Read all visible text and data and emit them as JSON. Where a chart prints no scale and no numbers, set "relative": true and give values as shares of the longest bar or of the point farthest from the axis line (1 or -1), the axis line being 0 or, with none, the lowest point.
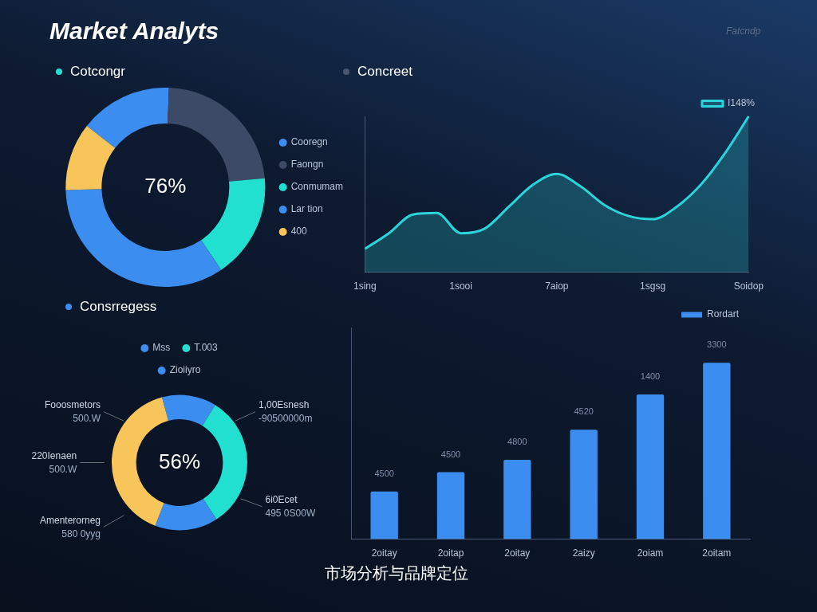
{
  "chart_data": [
    {
      "type": "other",
      "title": "Market Analyts",
      "annotations": [
        "Fatcndp",
        "市场分析与品牌定位"
      ]
    },
    {
      "type": "donut",
      "title": "Cotcongr",
      "categories": [
        "Cooregn",
        "Faongn",
        "Conmumam",
        "Lar tion",
        "400"
      ],
      "values": [
        15,
        23,
        17,
        34,
        11
      ],
      "colors": [
        "#3b8ef0",
        "#3d4a66",
        "#22e0cf",
        "#3b8ef0",
        "#f7c55a"
      ],
      "annotations": [
        "76%"
      ],
      "legend": "right"
    },
    {
      "type": "area",
      "title": "Concreet",
      "relative": true,
      "categories": [
        "1sing",
        null,
        null,
        null,
        "1sooi",
        null,
        null,
        null,
        "7aiop",
        null,
        null,
        null,
        "1sgsg",
        null,
        null,
        null,
        "Soidop"
      ],
      "series": [
        {
          "name": "I148%",
          "color": "#2ad4d8",
          "values": [
            0.15,
            0.25,
            0.37,
            0.38,
            0.25,
            0.28,
            0.42,
            0.56,
            0.63,
            0.55,
            0.43,
            0.36,
            0.34,
            0.42,
            0.56,
            0.76,
            1.0
          ]
        }
      ],
      "legend": "top right",
      "marker": "none"
    },
    {
      "type": "donut",
      "title": "Consrregess",
      "categories": [
        "Mss",
        "T.003",
        "Zioiiyro",
        null
      ],
      "values": [
        13,
        32,
        15,
        40
      ],
      "colors": [
        "#3b8ef0",
        "#22e0cf",
        "#3b8ef0",
        "#f7c55a"
      ],
      "annotations": [
        "56%",
        "1,00Esnesh",
        "-90500000m",
        "6i0Ecet",
        "495 0S00W",
        "Amenterorneg",
        "580 0yyg",
        "220Ienaen",
        "500.W",
        "Fooosmetors",
        "500.W"
      ],
      "legend": "top"
    },
    {
      "type": "bar",
      "categories": [
        "2oitay",
        "2oitap",
        "2oitay",
        "2aizy",
        "2oiam",
        "2oitam"
      ],
      "relative": true,
      "series": [
        {
          "name": "Rordart",
          "color": "#3b8ef0",
          "values": [
            0.27,
            0.38,
            0.45,
            0.62,
            0.82,
            1.0
          ]
        }
      ],
      "annotations": [
        "4500",
        "4500",
        "4800",
        "4520",
        "1400",
        "3300"
      ],
      "legend": "top right"
    }
  ]
}
